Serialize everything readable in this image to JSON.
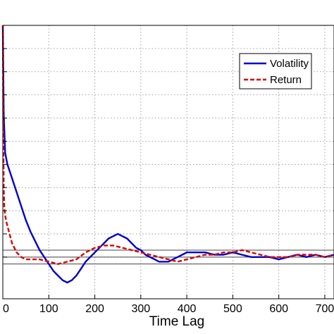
{
  "chart_data": {
    "type": "line",
    "title": "",
    "xlabel": "Time Lag",
    "ylabel": "",
    "xlim": [
      0,
      720
    ],
    "ylim": [
      -0.18,
      1.0
    ],
    "xticks": [
      0,
      100,
      200,
      300,
      400,
      500,
      600,
      700
    ],
    "xtick_labels": [
      "0",
      "100",
      "200",
      "300",
      "400",
      "500",
      "600",
      "700"
    ],
    "ygrid": [
      0.0,
      0.1,
      0.2,
      0.3,
      0.4,
      0.5,
      0.6,
      0.7,
      0.8,
      0.9,
      1.0
    ],
    "grid": true,
    "legend": "top-right",
    "reference_lines": [
      0.03,
      0.0,
      -0.03
    ],
    "series": [
      {
        "name": "Volatility",
        "color": "#0000cc",
        "style": "solid",
        "x": [
          0,
          2,
          5,
          10,
          20,
          30,
          40,
          50,
          60,
          70,
          80,
          90,
          100,
          110,
          120,
          130,
          140,
          150,
          160,
          170,
          180,
          190,
          200,
          210,
          220,
          230,
          240,
          250,
          260,
          270,
          280,
          290,
          300,
          310,
          320,
          330,
          340,
          350,
          360,
          370,
          380,
          390,
          400,
          420,
          440,
          460,
          480,
          500,
          520,
          540,
          560,
          580,
          600,
          620,
          640,
          660,
          680,
          700,
          720
        ],
        "y": [
          1.0,
          0.62,
          0.45,
          0.4,
          0.34,
          0.28,
          0.22,
          0.16,
          0.11,
          0.07,
          0.03,
          0.0,
          -0.03,
          -0.06,
          -0.08,
          -0.1,
          -0.11,
          -0.1,
          -0.08,
          -0.05,
          -0.02,
          0.0,
          0.02,
          0.04,
          0.06,
          0.08,
          0.09,
          0.1,
          0.09,
          0.08,
          0.06,
          0.04,
          0.03,
          0.01,
          0.0,
          -0.01,
          -0.02,
          -0.02,
          -0.02,
          -0.01,
          0.0,
          0.01,
          0.02,
          0.02,
          0.02,
          0.01,
          0.01,
          0.02,
          0.01,
          0.0,
          0.0,
          0.0,
          -0.01,
          0.0,
          0.01,
          0.0,
          0.01,
          0.0,
          0.01
        ]
      },
      {
        "name": "Return",
        "color": "#dd0000",
        "style": "dashed",
        "x": [
          0,
          1,
          2,
          3,
          5,
          8,
          12,
          16,
          20,
          25,
          30,
          40,
          50,
          60,
          80,
          100,
          120,
          140,
          160,
          180,
          200,
          220,
          240,
          260,
          280,
          300,
          320,
          340,
          360,
          380,
          400,
          420,
          440,
          460,
          480,
          500,
          520,
          540,
          560,
          580,
          600,
          620,
          640,
          660,
          680,
          700,
          720
        ],
        "y": [
          1.0,
          0.55,
          0.3,
          0.22,
          0.18,
          0.15,
          0.12,
          0.09,
          0.06,
          0.04,
          0.02,
          0.0,
          -0.01,
          -0.01,
          -0.01,
          -0.02,
          -0.03,
          -0.02,
          -0.01,
          0.02,
          0.04,
          0.05,
          0.05,
          0.04,
          0.03,
          0.02,
          0.01,
          0.0,
          -0.01,
          -0.02,
          -0.01,
          0.0,
          0.01,
          0.01,
          0.02,
          0.02,
          0.03,
          0.02,
          0.01,
          0.0,
          0.0,
          0.0,
          0.01,
          0.01,
          0.01,
          0.0,
          0.01
        ]
      }
    ]
  }
}
